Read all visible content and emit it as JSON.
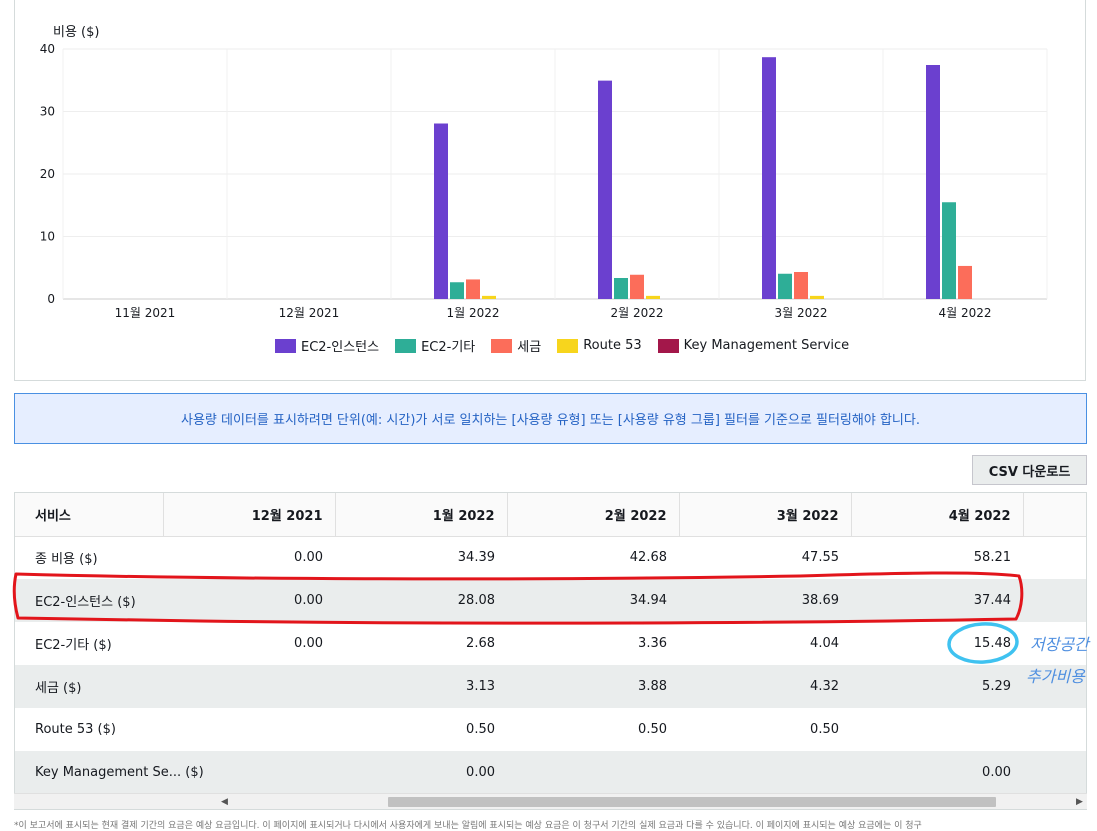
{
  "chart": {
    "y_title": "비용 ($)",
    "legend": [
      {
        "label": "EC2-인스턴스",
        "color": "#6b40cf"
      },
      {
        "label": "EC2-기타",
        "color": "#2eae97"
      },
      {
        "label": "세금",
        "color": "#fc6d5a"
      },
      {
        "label": "Route 53",
        "color": "#f7d51d"
      },
      {
        "label": "Key Management Service",
        "color": "#a3174a"
      }
    ]
  },
  "chart_data": {
    "type": "bar",
    "categories": [
      "11월 2021",
      "12월 2021",
      "1월 2022",
      "2월 2022",
      "3월 2022",
      "4월 2022"
    ],
    "series": [
      {
        "name": "EC2-인스턴스",
        "values": [
          0,
          0,
          28.08,
          34.94,
          38.69,
          37.44
        ]
      },
      {
        "name": "EC2-기타",
        "values": [
          0,
          0,
          2.68,
          3.36,
          4.04,
          15.48
        ]
      },
      {
        "name": "세금",
        "values": [
          0,
          0,
          3.13,
          3.88,
          4.32,
          5.29
        ]
      },
      {
        "name": "Route 53",
        "values": [
          0,
          0,
          0.5,
          0.5,
          0.5,
          0
        ]
      },
      {
        "name": "Key Management Service",
        "values": [
          0,
          0,
          0.0,
          0,
          0,
          0.0
        ]
      }
    ],
    "ylim": [
      0,
      40
    ],
    "yticks": [
      0,
      10,
      20,
      30,
      40
    ],
    "ylabel": "비용 ($)",
    "grid": true,
    "legend_position": "bottom"
  },
  "banner": {
    "text": "사용량 데이터를 표시하려면 단위(예: 시간)가 서로 일치하는 [사용량 유형] 또는 [사용량 유형 그룹] 필터를 기준으로 필터링해야 합니다."
  },
  "csv_button": "CSV 다운로드",
  "table": {
    "columns": [
      "서비스",
      "12월 2021",
      "1월 2022",
      "2월 2022",
      "3월 2022",
      "4월 2022"
    ],
    "rows": [
      [
        "종 비용 ($)",
        "0.00",
        "34.39",
        "42.68",
        "47.55",
        "58.21"
      ],
      [
        "EC2-인스턴스 ($)",
        "0.00",
        "28.08",
        "34.94",
        "38.69",
        "37.44"
      ],
      [
        "EC2-기타 ($)",
        "0.00",
        "2.68",
        "3.36",
        "4.04",
        "15.48"
      ],
      [
        "세금 ($)",
        "",
        "3.13",
        "3.88",
        "4.32",
        "5.29"
      ],
      [
        "Route 53 ($)",
        "",
        "0.50",
        "0.50",
        "0.50",
        ""
      ],
      [
        "Key Management Se... ($)",
        "",
        "0.00",
        "",
        "",
        "0.00"
      ]
    ]
  },
  "scrollbar": {
    "left": "◀",
    "right": "▶"
  },
  "annotation": {
    "handwritten_line1": "저장공간",
    "handwritten_line2": "추가비용"
  },
  "footnote": "*이 보고서에 표시되는 현재 결제 기간의 요금은 예상 요금입니다. 이 페이지에 표시되거나 다시에서 사용자에게 보내는 알림에 표시되는 예상 요금은 이 청구서 기간의 실제 요금과 다를 수 있습니다. 이 페이지에 표시되는 예상 요금에는 이 청구"
}
